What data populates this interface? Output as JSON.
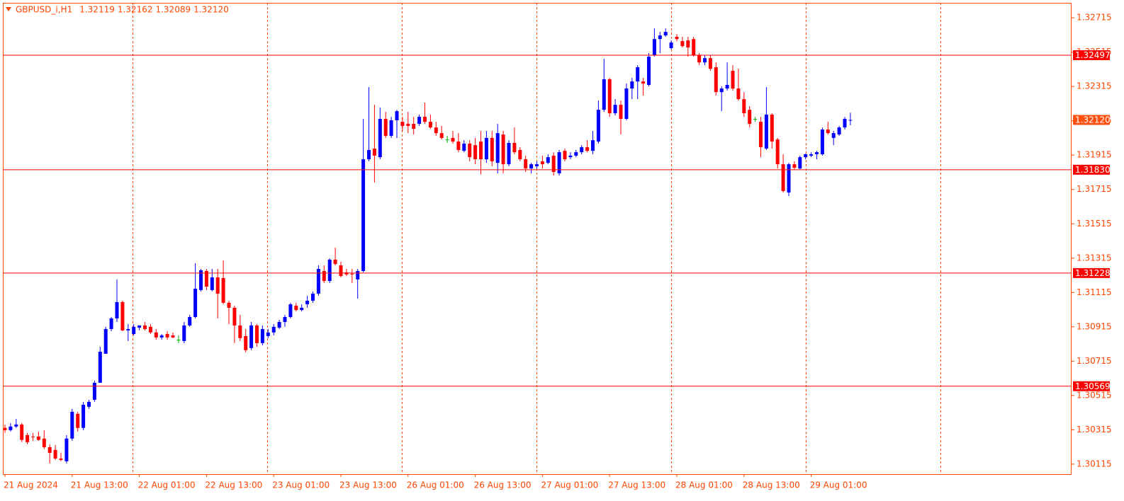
{
  "chart_data": {
    "type": "candlestick",
    "title": "GBPUSD_i,H1",
    "header": {
      "values": [
        1.32119,
        1.32162,
        1.32089,
        1.3212
      ],
      "value_labels": [
        "1.32119",
        "1.32162",
        "1.32089",
        "1.32120"
      ]
    },
    "categories": [
      "21 Aug 2024",
      null,
      null,
      null,
      null,
      null,
      null,
      null,
      null,
      null,
      null,
      null,
      "21 Aug 13:00",
      null,
      null,
      null,
      null,
      null,
      null,
      null,
      null,
      null,
      null,
      null,
      "22 Aug 01:00",
      null,
      null,
      null,
      null,
      null,
      null,
      null,
      null,
      null,
      null,
      null,
      "22 Aug 13:00",
      null,
      null,
      null,
      null,
      null,
      null,
      null,
      null,
      null,
      null,
      null,
      "23 Aug 01:00",
      null,
      null,
      null,
      null,
      null,
      null,
      null,
      null,
      null,
      null,
      null,
      "23 Aug 13:00",
      null,
      null,
      null,
      null,
      null,
      null,
      null,
      null,
      null,
      null,
      null,
      "26 Aug 01:00",
      null,
      null,
      null,
      null,
      null,
      null,
      null,
      null,
      null,
      null,
      null,
      "26 Aug 13:00",
      null,
      null,
      null,
      null,
      null,
      null,
      null,
      null,
      null,
      null,
      null,
      "27 Aug 01:00",
      null,
      null,
      null,
      null,
      null,
      null,
      null,
      null,
      null,
      null,
      null,
      "27 Aug 13:00",
      null,
      null,
      null,
      null,
      null,
      null,
      null,
      null,
      null,
      null,
      null,
      "28 Aug 01:00",
      null,
      null,
      null,
      null,
      null,
      null,
      null,
      null,
      null,
      null,
      null,
      "28 Aug 13:00",
      null,
      null,
      null,
      null,
      null,
      null,
      null,
      null,
      null,
      null,
      null,
      "29 Aug 01:00",
      null,
      null,
      null,
      null,
      null,
      null,
      null
    ],
    "candles": [
      [
        1.30326,
        1.30346,
        1.30297,
        1.30313
      ],
      [
        1.30313,
        1.30354,
        1.30305,
        1.30334
      ],
      [
        1.30334,
        1.30379,
        1.30326,
        1.30346
      ],
      [
        1.30346,
        1.30354,
        1.30243,
        1.30256
      ],
      [
        1.30284,
        1.30297,
        1.30231,
        1.30243
      ],
      [
        1.30276,
        1.30297,
        1.30251,
        1.30272
      ],
      [
        1.30276,
        1.30305,
        1.30251,
        1.30256
      ],
      [
        1.30264,
        1.30313,
        1.30202,
        1.30214
      ],
      [
        1.30214,
        1.30231,
        1.30119,
        1.30181
      ],
      [
        1.30198,
        1.30227,
        1.3014,
        1.30148
      ],
      [
        1.30148,
        1.30181,
        1.30132,
        1.3014
      ],
      [
        1.30132,
        1.30284,
        1.30119,
        1.30264
      ],
      [
        1.30264,
        1.30437,
        1.30251,
        1.3042
      ],
      [
        1.30408,
        1.3042,
        1.30305,
        1.30326
      ],
      [
        1.30326,
        1.30478,
        1.30313,
        1.30461
      ],
      [
        1.30449,
        1.3049,
        1.30437,
        1.30478
      ],
      [
        1.3049,
        1.30601,
        1.30478,
        1.30589
      ],
      [
        1.30589,
        1.30799,
        1.30589,
        1.3077
      ],
      [
        1.30758,
        1.30915,
        1.30758,
        1.30902
      ],
      [
        1.30902,
        1.30972,
        1.3089,
        1.30964
      ],
      [
        1.30964,
        1.31191,
        1.30943,
        1.31059
      ],
      [
        1.31059,
        1.31067,
        1.3089,
        1.30894
      ],
      [
        1.30894,
        1.30931,
        1.30832,
        1.30902
      ],
      [
        1.30873,
        1.30931,
        1.30865,
        1.30915
      ],
      [
        1.3091,
        1.30923,
        1.30894,
        1.30923
      ],
      [
        1.30923,
        1.30943,
        1.30894,
        1.30902
      ],
      [
        1.30915,
        1.30931,
        1.30873,
        1.30882
      ],
      [
        1.30882,
        1.30902,
        1.3084,
        1.30853
      ],
      [
        1.30853,
        1.30873,
        1.3084,
        1.30865
      ],
      [
        1.30873,
        1.3089,
        1.3084,
        1.30853
      ],
      [
        1.30865,
        1.30882,
        1.30849,
        1.30853
      ],
      [
        1.3084,
        1.30865,
        1.3082,
        1.3084
      ],
      [
        1.30832,
        1.30943,
        1.3082,
        1.30923
      ],
      [
        1.30923,
        1.30985,
        1.30915,
        1.30972
      ],
      [
        1.30972,
        1.31285,
        1.30964,
        1.31137
      ],
      [
        1.31129,
        1.31252,
        1.31121,
        1.31244
      ],
      [
        1.3124,
        1.31252,
        1.31129,
        1.31149
      ],
      [
        1.31129,
        1.31252,
        1.31121,
        1.31203
      ],
      [
        1.31203,
        1.31252,
        1.30964,
        1.31108
      ],
      [
        1.31199,
        1.31302,
        1.31046,
        1.31055
      ],
      [
        1.31055,
        1.31067,
        1.30931,
        1.31026
      ],
      [
        1.31026,
        1.31038,
        1.3082,
        1.30923
      ],
      [
        1.30923,
        1.30985,
        1.30832,
        1.30849
      ],
      [
        1.30861,
        1.30902,
        1.30766,
        1.30779
      ],
      [
        1.30791,
        1.30943,
        1.30779,
        1.30923
      ],
      [
        1.30923,
        1.30931,
        1.30799,
        1.3082
      ],
      [
        1.3082,
        1.30923,
        1.30807,
        1.30902
      ],
      [
        1.30861,
        1.30902,
        1.30849,
        1.30882
      ],
      [
        1.30882,
        1.30931,
        1.30865,
        1.30915
      ],
      [
        1.3091,
        1.30956,
        1.30902,
        1.30943
      ],
      [
        1.30943,
        1.30985,
        1.30915,
        1.30972
      ],
      [
        1.30972,
        1.31055,
        1.30964,
        1.31046
      ],
      [
        1.31038,
        1.31055,
        1.31005,
        1.31013
      ],
      [
        1.31013,
        1.31046,
        1.31005,
        1.31026
      ],
      [
        1.31046,
        1.31096,
        1.31026,
        1.31067
      ],
      [
        1.31067,
        1.31121,
        1.31055,
        1.31108
      ],
      [
        1.31108,
        1.31273,
        1.31096,
        1.31252
      ],
      [
        1.3124,
        1.31273,
        1.3117,
        1.31182
      ],
      [
        1.31182,
        1.31314,
        1.3117,
        1.31306
      ],
      [
        1.31306,
        1.31376,
        1.31273,
        1.31281
      ],
      [
        1.31273,
        1.31294,
        1.31203,
        1.31211
      ],
      [
        1.31232,
        1.31252,
        1.31211,
        1.3122
      ],
      [
        1.31224,
        1.31252,
        1.3117,
        1.3122
      ],
      [
        1.31191,
        1.31252,
        1.31079,
        1.3124
      ],
      [
        1.3124,
        1.32126,
        1.31232,
        1.31891
      ],
      [
        1.31891,
        1.32311,
        1.31879,
        1.31945
      ],
      [
        1.31953,
        1.32208,
        1.31755,
        1.31912
      ],
      [
        1.31903,
        1.32192,
        1.31891,
        1.32126
      ],
      [
        1.32126,
        1.32167,
        1.32015,
        1.32027
      ],
      [
        1.32027,
        1.32138,
        1.32015,
        1.32118
      ],
      [
        1.32118,
        1.32179,
        1.32015,
        1.32171
      ],
      [
        1.32109,
        1.32138,
        1.32056,
        1.32085
      ],
      [
        1.32097,
        1.32167,
        1.32043,
        1.32085
      ],
      [
        1.32097,
        1.32138,
        1.32035,
        1.32068
      ],
      [
        1.32097,
        1.32151,
        1.32085,
        1.32138
      ],
      [
        1.32138,
        1.32221,
        1.32097,
        1.32109
      ],
      [
        1.32109,
        1.32151,
        1.32068,
        1.32076
      ],
      [
        1.32076,
        1.32109,
        1.32027,
        1.32043
      ],
      [
        1.32043,
        1.32085,
        1.32006,
        1.32015
      ],
      [
        1.32006,
        1.32027,
        1.31986,
        1.32006
      ],
      [
        1.32015,
        1.32056,
        1.31982,
        1.31994
      ],
      [
        1.31994,
        1.32043,
        1.31932,
        1.31945
      ],
      [
        1.3194,
        1.32002,
        1.31932,
        1.31982
      ],
      [
        1.31982,
        1.32002,
        1.31879,
        1.31903
      ],
      [
        1.31973,
        1.32015,
        1.31862,
        1.31891
      ],
      [
        1.31994,
        1.32056,
        1.31804,
        1.31891
      ],
      [
        1.31891,
        1.32056,
        1.3187,
        1.32015
      ],
      [
        1.32015,
        1.32056,
        1.3185,
        1.31879
      ],
      [
        1.3187,
        1.32097,
        1.31809,
        1.32043
      ],
      [
        1.32035,
        1.32056,
        1.31809,
        1.31862
      ],
      [
        1.31862,
        1.32002,
        1.3185,
        1.31986
      ],
      [
        1.31986,
        1.32076,
        1.3192,
        1.31932
      ],
      [
        1.31945,
        1.31961,
        1.31879,
        1.31891
      ],
      [
        1.31891,
        1.31912,
        1.31817,
        1.31837
      ],
      [
        1.31837,
        1.3187,
        1.31809,
        1.31862
      ],
      [
        1.3185,
        1.31879,
        1.31837,
        1.31862
      ],
      [
        1.31879,
        1.31912,
        1.31837,
        1.31862
      ],
      [
        1.3187,
        1.3192,
        1.31862,
        1.31903
      ],
      [
        1.31912,
        1.31932,
        1.31796,
        1.31817
      ],
      [
        1.31809,
        1.31945,
        1.31796,
        1.31932
      ],
      [
        1.3194,
        1.31953,
        1.31879,
        1.31891
      ],
      [
        1.31903,
        1.31932,
        1.31891,
        1.31912
      ],
      [
        1.31912,
        1.31945,
        1.31903,
        1.31932
      ],
      [
        1.31932,
        1.31973,
        1.3192,
        1.31961
      ],
      [
        1.31961,
        1.32002,
        1.31932,
        1.3194
      ],
      [
        1.3194,
        1.32056,
        1.3192,
        1.32002
      ],
      [
        1.31994,
        1.32233,
        1.31982,
        1.32179
      ],
      [
        1.32179,
        1.32476,
        1.32167,
        1.32357
      ],
      [
        1.32357,
        1.32365,
        1.32138,
        1.32159
      ],
      [
        1.32159,
        1.32241,
        1.32146,
        1.32208
      ],
      [
        1.32208,
        1.32233,
        1.32035,
        1.32126
      ],
      [
        1.32126,
        1.32332,
        1.32118,
        1.32303
      ],
      [
        1.32303,
        1.32365,
        1.32241,
        1.32344
      ],
      [
        1.32344,
        1.32439,
        1.32241,
        1.32427
      ],
      [
        1.32344,
        1.32365,
        1.32262,
        1.32332
      ],
      [
        1.32324,
        1.32509,
        1.32315,
        1.32488
      ],
      [
        1.32497,
        1.32653,
        1.32488,
        1.32591
      ],
      [
        1.32591,
        1.32633,
        1.32509,
        1.32612
      ],
      [
        1.32612,
        1.32653,
        1.32604,
        1.32633
      ],
      [
        1.32538,
        1.32583,
        1.3253,
        1.32571
      ],
      [
        1.32604,
        1.3262,
        1.32579,
        1.32591
      ],
      [
        1.32579,
        1.32604,
        1.32542,
        1.3255
      ],
      [
        1.32583,
        1.32604,
        1.32488,
        1.32542
      ],
      [
        1.32591,
        1.32604,
        1.32488,
        1.32497
      ],
      [
        1.32497,
        1.32509,
        1.32439,
        1.32455
      ],
      [
        1.32455,
        1.32497,
        1.32439,
        1.3248
      ],
      [
        1.3248,
        1.32497,
        1.32406,
        1.32418
      ],
      [
        1.32427,
        1.32455,
        1.32262,
        1.32282
      ],
      [
        1.32282,
        1.32315,
        1.32171,
        1.32303
      ],
      [
        1.32303,
        1.32455,
        1.32291,
        1.32324
      ],
      [
        1.32406,
        1.32439,
        1.32291,
        1.32303
      ],
      [
        1.32303,
        1.32418,
        1.32233,
        1.32241
      ],
      [
        1.32241,
        1.32282,
        1.32138,
        1.32159
      ],
      [
        1.32179,
        1.322,
        1.32076,
        1.32097
      ],
      [
        1.32126,
        1.32138,
        1.32109,
        1.32126
      ],
      [
        1.32109,
        1.32138,
        1.31903,
        1.31961
      ],
      [
        1.31953,
        1.32311,
        1.31945,
        1.32151
      ],
      [
        1.32151,
        1.32159,
        1.31953,
        1.31994
      ],
      [
        1.32006,
        1.32015,
        1.31837,
        1.31862
      ],
      [
        1.31862,
        1.3192,
        1.31697,
        1.31706
      ],
      [
        1.31697,
        1.3187,
        1.31677,
        1.31862
      ],
      [
        1.31862,
        1.31879,
        1.31829,
        1.31841
      ],
      [
        1.31837,
        1.31912,
        1.31829,
        1.31903
      ],
      [
        1.31903,
        1.31924,
        1.31891,
        1.3192
      ],
      [
        1.31912,
        1.31932,
        1.31903,
        1.3192
      ],
      [
        1.3192,
        1.3194,
        1.31891,
        1.31932
      ],
      [
        1.3192,
        1.32076,
        1.31912,
        1.32064
      ],
      [
        1.32064,
        1.32109,
        1.32035,
        1.32043
      ],
      [
        1.32015,
        1.32056,
        1.31973,
        1.32043
      ],
      [
        1.32035,
        1.32085,
        1.32027,
        1.32076
      ],
      [
        1.32076,
        1.32138,
        1.32064,
        1.32126
      ],
      [
        1.32119,
        1.32162,
        1.32089,
        1.3212
      ]
    ],
    "ylim": [
      1.30057,
      1.32802
    ],
    "yticks": [
      1.32715,
      1.32515,
      1.32315,
      1.32115,
      1.31915,
      1.31715,
      1.31515,
      1.31315,
      1.31115,
      1.30915,
      1.30715,
      1.30515,
      1.30315,
      1.30115
    ],
    "levels": [
      1.32497,
      {
        "value": 1.3183,
        "label": "1.31830"
      },
      1.31228,
      1.30569
    ],
    "bid": {
      "value": 1.3212,
      "label": "1.32120"
    },
    "grid": true,
    "colors": {
      "up": "#0000ff",
      "down": "#ff0000",
      "doji": "#00b000",
      "level": "#ff0000",
      "bid": "#ff4f0f",
      "axis": "#ff4500"
    }
  }
}
